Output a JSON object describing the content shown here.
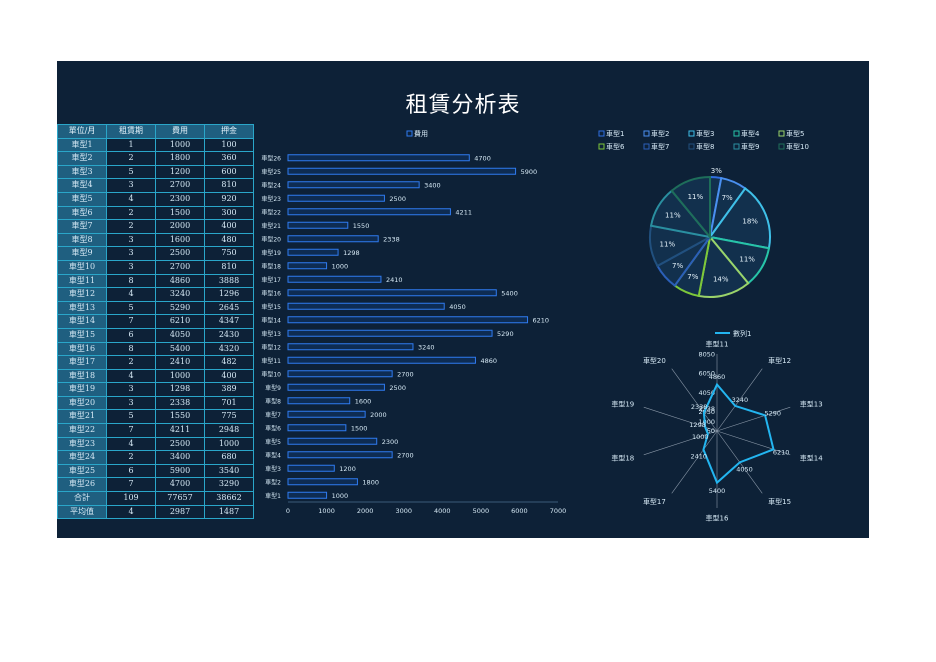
{
  "title": "租賃分析表",
  "table": {
    "headers": [
      "單位/月",
      "租賃期",
      "費用",
      "押金"
    ],
    "rows": [
      [
        "車型1",
        "1",
        "1000",
        "100"
      ],
      [
        "車型2",
        "2",
        "1800",
        "360"
      ],
      [
        "車型3",
        "5",
        "1200",
        "600"
      ],
      [
        "車型4",
        "3",
        "2700",
        "810"
      ],
      [
        "車型5",
        "4",
        "2300",
        "920"
      ],
      [
        "車型6",
        "2",
        "1500",
        "300"
      ],
      [
        "車型7",
        "2",
        "2000",
        "400"
      ],
      [
        "車型8",
        "3",
        "1600",
        "480"
      ],
      [
        "車型9",
        "3",
        "2500",
        "750"
      ],
      [
        "車型10",
        "3",
        "2700",
        "810"
      ],
      [
        "車型11",
        "8",
        "4860",
        "3888"
      ],
      [
        "車型12",
        "4",
        "3240",
        "1296"
      ],
      [
        "車型13",
        "5",
        "5290",
        "2645"
      ],
      [
        "車型14",
        "7",
        "6210",
        "4347"
      ],
      [
        "車型15",
        "6",
        "4050",
        "2430"
      ],
      [
        "車型16",
        "8",
        "5400",
        "4320"
      ],
      [
        "車型17",
        "2",
        "2410",
        "482"
      ],
      [
        "車型18",
        "4",
        "1000",
        "400"
      ],
      [
        "車型19",
        "3",
        "1298",
        "389"
      ],
      [
        "車型20",
        "3",
        "2338",
        "701"
      ],
      [
        "車型21",
        "5",
        "1550",
        "775"
      ],
      [
        "車型22",
        "7",
        "4211",
        "2948"
      ],
      [
        "車型23",
        "4",
        "2500",
        "1000"
      ],
      [
        "車型24",
        "2",
        "3400",
        "680"
      ],
      [
        "車型25",
        "6",
        "5900",
        "3540"
      ],
      [
        "車型26",
        "7",
        "4700",
        "3290"
      ]
    ],
    "summary": [
      [
        "合計",
        "109",
        "77657",
        "38662"
      ],
      [
        "平均值",
        "4",
        "2987",
        "1487"
      ]
    ]
  },
  "chart_data": [
    {
      "type": "bar",
      "orientation": "horizontal",
      "legend": [
        "費用"
      ],
      "categories": [
        "車型1",
        "車型2",
        "車型3",
        "車型4",
        "車型5",
        "車型6",
        "車型7",
        "車型8",
        "車型9",
        "車型10",
        "車型11",
        "車型12",
        "車型13",
        "車型14",
        "車型15",
        "車型16",
        "車型17",
        "車型18",
        "車型19",
        "車型20",
        "車型21",
        "車型22",
        "車型23",
        "車型24",
        "車型25",
        "車型26"
      ],
      "values": [
        1000,
        1800,
        1200,
        2700,
        2300,
        1500,
        2000,
        1600,
        2500,
        2700,
        4860,
        3240,
        5290,
        6210,
        4050,
        5400,
        2410,
        1000,
        1298,
        2338,
        1550,
        4211,
        2500,
        3400,
        5900,
        4700
      ],
      "xlim": [
        0,
        7000
      ],
      "xticks": [
        0,
        1000,
        2000,
        3000,
        4000,
        5000,
        6000,
        7000
      ],
      "color": "#2f7bf0"
    },
    {
      "type": "pie",
      "legend": [
        "車型1",
        "車型2",
        "車型3",
        "車型4",
        "車型5",
        "車型6",
        "車型7",
        "車型8",
        "車型9",
        "車型10"
      ],
      "labels": [
        "3%",
        "7%",
        "18%",
        "11%",
        "14%",
        "7%",
        "7%",
        "11%",
        "11%",
        "11%"
      ],
      "values": [
        3,
        7,
        18,
        11,
        14,
        7,
        7,
        11,
        11,
        11
      ],
      "colors": [
        "#2f6ee0",
        "#4a90f0",
        "#3fc0e8",
        "#27c4a8",
        "#9ad36a",
        "#7dc83a",
        "#2b5fb8",
        "#21507e",
        "#2a8fa0",
        "#1e6e5a"
      ]
    },
    {
      "type": "radar",
      "legend": [
        "數列1"
      ],
      "categories": [
        "車型11",
        "車型12",
        "車型13",
        "車型14",
        "車型15",
        "車型16",
        "車型17",
        "車型18",
        "車型19",
        "車型20"
      ],
      "values": [
        4860,
        3240,
        5290,
        6210,
        4050,
        5400,
        2410,
        1000,
        1298,
        2338
      ],
      "axis_ticks": [
        "50",
        "1000",
        "2050",
        "2338",
        "4050",
        "6050",
        "8050"
      ],
      "max": 8050,
      "color": "#23b5f0"
    }
  ]
}
